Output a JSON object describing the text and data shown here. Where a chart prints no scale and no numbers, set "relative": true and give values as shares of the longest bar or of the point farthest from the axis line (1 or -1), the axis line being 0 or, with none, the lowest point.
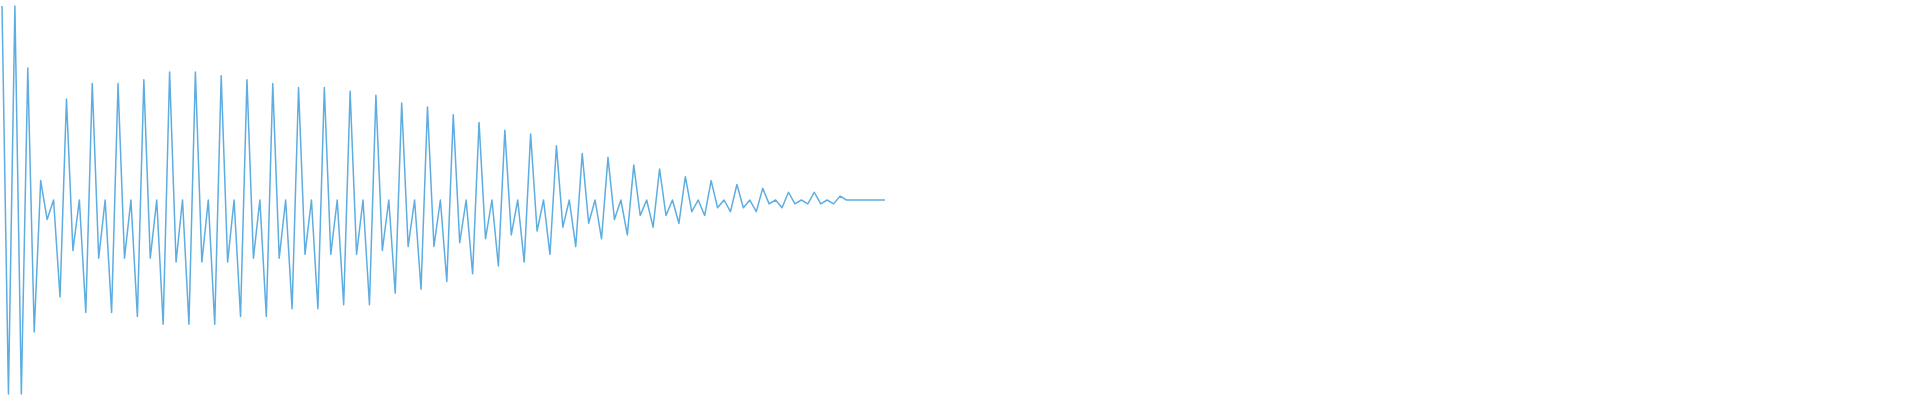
{
  "chart_data": {
    "type": "line",
    "relative": true,
    "categories": [
      null,
      null,
      null,
      null,
      null,
      null,
      null,
      null,
      null,
      null,
      null,
      null,
      null,
      null,
      null,
      null,
      null,
      null,
      null,
      null,
      null,
      null,
      null,
      null,
      null,
      null,
      null,
      null,
      null,
      null,
      null,
      null,
      null,
      null,
      null,
      null,
      null,
      null,
      null,
      null,
      null,
      null,
      null,
      null,
      null,
      null,
      null,
      null,
      null,
      null,
      null,
      null,
      null,
      null,
      null,
      null,
      null,
      null,
      null,
      null,
      null,
      null,
      null,
      null,
      null,
      null,
      null,
      null,
      null,
      null,
      null,
      null,
      null,
      null,
      null,
      null,
      null,
      null,
      null,
      null,
      null,
      null,
      null,
      null,
      null,
      null,
      null,
      null,
      null,
      null,
      null,
      null,
      null,
      null,
      null,
      null,
      null,
      null,
      null,
      null,
      null,
      null,
      null,
      null,
      null,
      null,
      null,
      null,
      null,
      null,
      null,
      null,
      null,
      null,
      null,
      null,
      null,
      null,
      null,
      null,
      null,
      null,
      null,
      null,
      null,
      null,
      null,
      null,
      null,
      null,
      null,
      null,
      null,
      null,
      null,
      null,
      null,
      null
    ],
    "series": [
      {
        "color": "#5dade2",
        "values": [
          1,
          0,
          1,
          0,
          0.84,
          0.16,
          0.55,
          0.45,
          0.5,
          0.25,
          0.76,
          0.37,
          0.5,
          0.21,
          0.8,
          0.35,
          0.5,
          0.21,
          0.8,
          0.35,
          0.5,
          0.2,
          0.81,
          0.35,
          0.5,
          0.18,
          0.83,
          0.34,
          0.5,
          0.18,
          0.83,
          0.34,
          0.5,
          0.18,
          0.82,
          0.34,
          0.5,
          0.2,
          0.81,
          0.35,
          0.5,
          0.2,
          0.8,
          0.35,
          0.5,
          0.22,
          0.79,
          0.36,
          0.5,
          0.22,
          0.79,
          0.36,
          0.5,
          0.23,
          0.78,
          0.36,
          0.5,
          0.23,
          0.77,
          0.37,
          0.5,
          0.26,
          0.75,
          0.38,
          0.5,
          0.27,
          0.74,
          0.38,
          0.5,
          0.29,
          0.72,
          0.39,
          0.5,
          0.31,
          0.7,
          0.4,
          0.5,
          0.33,
          0.68,
          0.41,
          0.5,
          0.34,
          0.67,
          0.42,
          0.5,
          0.36,
          0.64,
          0.43,
          0.5,
          0.38,
          0.62,
          0.44,
          0.5,
          0.4,
          0.61,
          0.45,
          0.5,
          0.41,
          0.59,
          0.46,
          0.5,
          0.43,
          0.58,
          0.46,
          0.5,
          0.44,
          0.56,
          0.47,
          0.5,
          0.46,
          0.55,
          0.48,
          0.5,
          0.47,
          0.54,
          0.48,
          0.5,
          0.47,
          0.53,
          0.49,
          0.5,
          0.48,
          0.52,
          0.49,
          0.5,
          0.49,
          0.52,
          0.49,
          0.5,
          0.49,
          0.51,
          0.5,
          0.5,
          0.5,
          0.5,
          0.5,
          0.5,
          0.5
        ]
      }
    ]
  }
}
